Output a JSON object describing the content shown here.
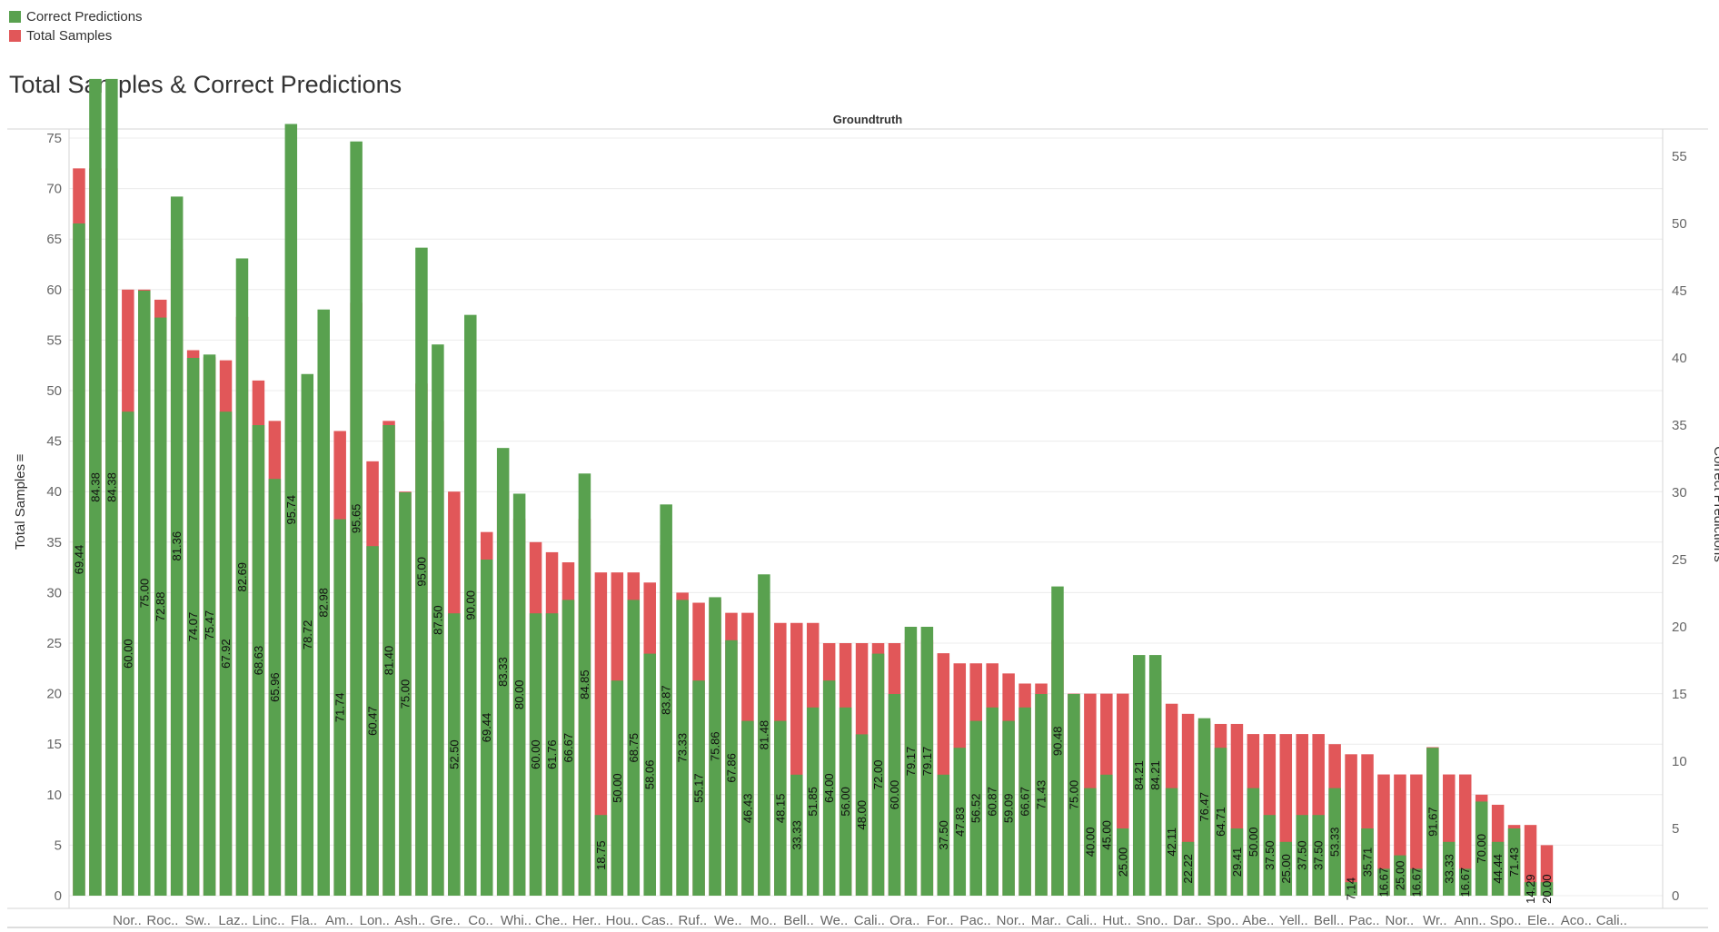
{
  "legend": [
    {
      "label": "Correct Predictions",
      "color": "#59a14f"
    },
    {
      "label": "Total Samples",
      "color": "#e15759"
    }
  ],
  "chart_data": {
    "type": "bar",
    "title": "Total Samples & Correct Predictions",
    "header": "Groundtruth",
    "ylabel_left": "Total Samples",
    "ylabel_right": "Correct Predictions",
    "left_ylim": [
      0,
      75
    ],
    "right_ylim": [
      0,
      55
    ],
    "left_ticks": [
      0,
      5,
      10,
      15,
      20,
      25,
      30,
      35,
      40,
      45,
      50,
      55,
      60,
      65,
      70,
      75
    ],
    "right_ticks": [
      0,
      5,
      10,
      15,
      20,
      25,
      30,
      35,
      40,
      45,
      50,
      55
    ],
    "grid": true,
    "legend_position": "top-left",
    "x_tick_labels": [
      "Nor..",
      "Roc..",
      "Sw..",
      "Laz..",
      "Linc..",
      "Fla..",
      "Am..",
      "Lon..",
      "Ash..",
      "Gre..",
      "Co..",
      "Whi..",
      "Che..",
      "Her..",
      "Hou..",
      "Cas..",
      "Ruf..",
      "We..",
      "Mo..",
      "Bell..",
      "We..",
      "Cali..",
      "Ora..",
      "For..",
      "Pac..",
      "Nor..",
      "Mar..",
      "Cali..",
      "Hut..",
      "Sno..",
      "Dar..",
      "Spo..",
      "Abe..",
      "Yell..",
      "Bell..",
      "Pac..",
      "Nor..",
      "Wr..",
      "Ann..",
      "Spo..",
      "Ele..",
      "Aco..",
      "Cali.."
    ],
    "series": [
      {
        "name": "Total Samples",
        "values": [
          72,
          72,
          72,
          60,
          60,
          59,
          64,
          54,
          53.3,
          53,
          57.3,
          51,
          47,
          60,
          49.3,
          52,
          46,
          58.7,
          43,
          47,
          40,
          50.7,
          47,
          40,
          48,
          36,
          40,
          37.3,
          35,
          34,
          33,
          37.3,
          32,
          32,
          32,
          31,
          34.7,
          30,
          29,
          29.3,
          28,
          28,
          29.3,
          27,
          27,
          27,
          25,
          25,
          25,
          25,
          25,
          25.3,
          25.3,
          24,
          23,
          23,
          23,
          22,
          21,
          21,
          25.3,
          20,
          20,
          20,
          20,
          21.3,
          21.3,
          19,
          18,
          17.3,
          17,
          17,
          16,
          16,
          16,
          16,
          16,
          15,
          14,
          14,
          12,
          12,
          12,
          14.7,
          12,
          12,
          10,
          9,
          7,
          7,
          5
        ]
      },
      {
        "name": "Correct Predictions",
        "values": [
          50,
          60.75,
          60.75,
          36,
          45,
          43,
          52,
          40,
          40.25,
          36,
          47.4,
          35,
          31,
          57.4,
          38.8,
          43.6,
          28,
          56.1,
          26,
          35,
          30,
          48.2,
          41,
          21,
          43.2,
          25,
          33.3,
          29.9,
          21,
          21,
          22,
          31.4,
          6,
          16,
          22,
          18,
          29.1,
          22,
          16,
          22.2,
          19,
          13,
          23.9,
          13,
          9,
          14,
          16,
          14,
          12,
          18,
          15,
          20,
          20,
          9,
          11,
          13,
          14,
          13,
          14,
          15,
          23,
          15,
          8,
          9,
          5,
          17.9,
          17.9,
          8,
          4,
          13.2,
          11,
          5,
          8,
          6,
          4,
          6,
          6,
          8,
          1,
          5,
          2,
          3,
          2,
          11,
          4,
          2,
          7,
          4,
          5,
          1,
          1
        ]
      }
    ],
    "data_labels": [
      "69.44",
      "84.38",
      "84.38",
      "60.00",
      "75.00",
      "72.88",
      "81.36",
      "74.07",
      "75.47",
      "67.92",
      "82.69",
      "68.63",
      "65.96",
      "95.74",
      "78.72",
      "82.98",
      "71.74",
      "95.65",
      "60.47",
      "81.40",
      "75.00",
      "95.00",
      "87.50",
      "52.50",
      "90.00",
      "69.44",
      "83.33",
      "80.00",
      "60.00",
      "61.76",
      "66.67",
      "84.85",
      "18.75",
      "50.00",
      "68.75",
      "58.06",
      "83.87",
      "73.33",
      "55.17",
      "75.86",
      "67.86",
      "46.43",
      "81.48",
      "48.15",
      "33.33",
      "51.85",
      "64.00",
      "56.00",
      "48.00",
      "72.00",
      "60.00",
      "79.17",
      "79.17",
      "37.50",
      "47.83",
      "56.52",
      "60.87",
      "59.09",
      "66.67",
      "71.43",
      "90.48",
      "75.00",
      "40.00",
      "45.00",
      "25.00",
      "84.21",
      "84.21",
      "42.11",
      "22.22",
      "76.47",
      "64.71",
      "29.41",
      "50.00",
      "37.50",
      "25.00",
      "37.50",
      "37.50",
      "53.33",
      "7.14",
      "35.71",
      "16.67",
      "25.00",
      "16.67",
      "91.67",
      "33.33",
      "16.67",
      "70.00",
      "44.44",
      "71.43",
      "14.29",
      "20.00"
    ]
  }
}
